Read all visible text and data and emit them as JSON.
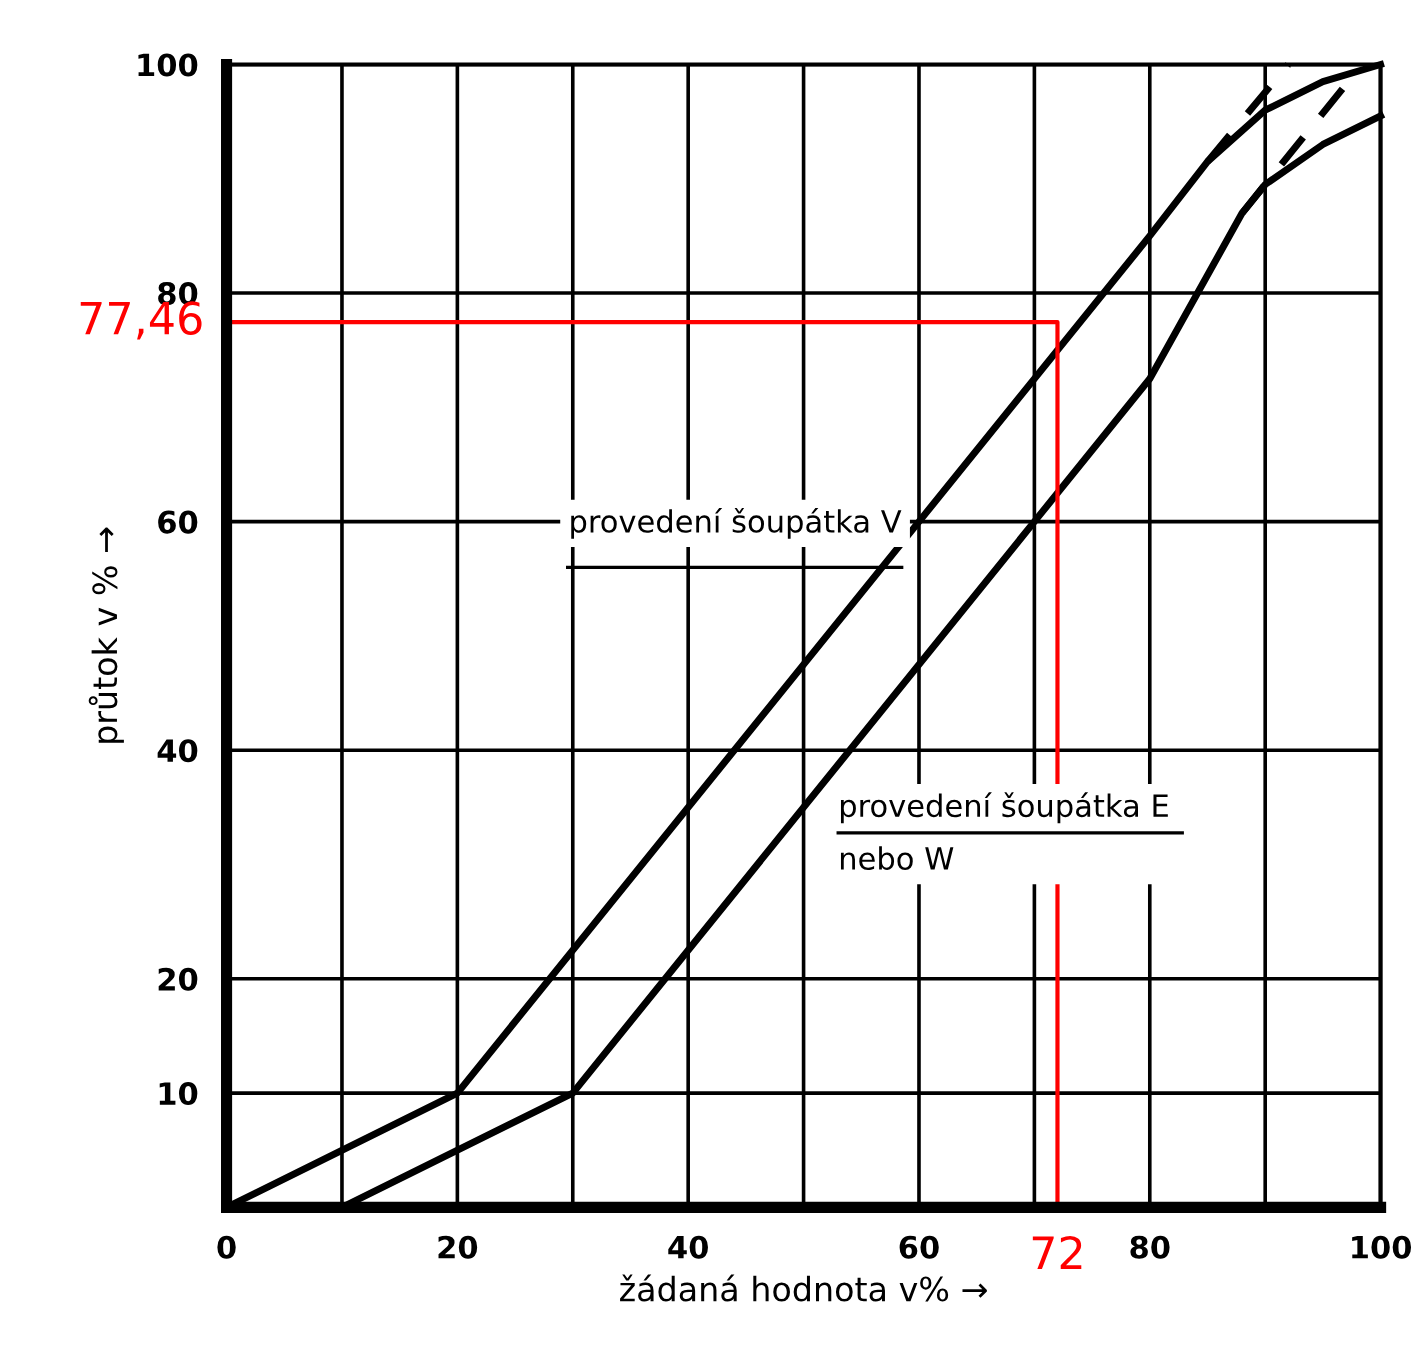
{
  "chart_data": {
    "type": "line",
    "xlabel": "žádaná hodnota v% →",
    "ylabel": "průtok v % →",
    "xlim": [
      0,
      100
    ],
    "ylim": [
      0,
      100
    ],
    "xticks": [
      0,
      {
        "value": 10,
        "label": null
      },
      20,
      {
        "value": 30,
        "label": null
      },
      40,
      {
        "value": 50,
        "label": null
      },
      60,
      {
        "value": 70,
        "label": null
      },
      80,
      {
        "value": 90,
        "label": null
      },
      100
    ],
    "yticks": [
      10,
      20,
      40,
      60,
      80,
      100
    ],
    "grid": true,
    "marker": "none",
    "series": [
      {
        "name": "provedení šoupátka V",
        "color": "#000000",
        "x": [
          0,
          20,
          60,
          80,
          85,
          90,
          95,
          100
        ],
        "values": [
          0,
          10,
          60,
          85,
          91.5,
          96,
          98.5,
          100
        ]
      },
      {
        "name": "provedení šoupátka E\nnebo W",
        "color": "#000000",
        "x": [
          10,
          30,
          70,
          80,
          88,
          90,
          95,
          100
        ],
        "values": [
          0,
          10,
          60,
          72.5,
          87,
          89.5,
          93,
          95.5
        ]
      },
      {
        "color": "#000000",
        "line_style": "dashed",
        "x": [
          85,
          92
        ],
        "values": [
          91.5,
          100
        ]
      },
      {
        "color": "#000000",
        "line_style": "dashed",
        "x": [
          88,
          98
        ],
        "values": [
          87,
          99.5
        ]
      },
      {
        "color": "#ff0000",
        "x": [
          0,
          72,
          72
        ],
        "values": [
          77.46,
          77.46,
          0
        ]
      }
    ],
    "annotations": [
      {
        "text": "77,46",
        "x": 0,
        "y": 77.46
      },
      {
        "text": "72",
        "x": 72,
        "y": 0
      }
    ]
  }
}
